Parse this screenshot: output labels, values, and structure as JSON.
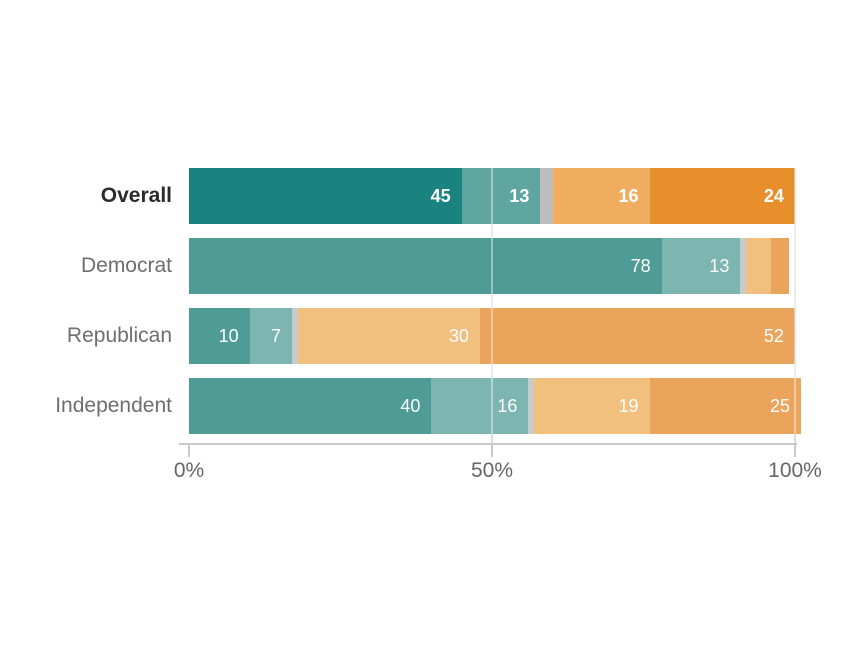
{
  "chart_data": {
    "type": "bar",
    "orientation": "horizontal-stacked",
    "title": "",
    "xlabel": "",
    "ylabel": "",
    "xlim": [
      0,
      100
    ],
    "grid": "vertical gridlines at 50 and 100, white over bars",
    "legend": "none",
    "categories": [
      "Overall",
      "Democrat",
      "Republican",
      "Independent"
    ],
    "series": [
      {
        "name": "teal-strong",
        "values": [
          45,
          78,
          10,
          40
        ]
      },
      {
        "name": "teal-light",
        "values": [
          13,
          13,
          7,
          16
        ]
      },
      {
        "name": "gray-neutral-unlabeled",
        "values": [
          2,
          1,
          1,
          1
        ]
      },
      {
        "name": "orange-light",
        "values": [
          16,
          4,
          30,
          19
        ]
      },
      {
        "name": "orange-strong",
        "values": [
          24,
          3,
          52,
          25
        ]
      }
    ],
    "rows": [
      {
        "label": "Overall",
        "emphasis": true,
        "segments": [
          {
            "value": 45,
            "text": "45"
          },
          {
            "value": 13,
            "text": "13"
          },
          {
            "value": 2,
            "text": ""
          },
          {
            "value": 16,
            "text": "16"
          },
          {
            "value": 24,
            "text": "24"
          }
        ]
      },
      {
        "label": "Democrat",
        "emphasis": false,
        "segments": [
          {
            "value": 78,
            "text": "78"
          },
          {
            "value": 13,
            "text": "13"
          },
          {
            "value": 1,
            "text": ""
          },
          {
            "value": 4,
            "text": ""
          },
          {
            "value": 3,
            "text": ""
          }
        ]
      },
      {
        "label": "Republican",
        "emphasis": false,
        "segments": [
          {
            "value": 10,
            "text": "10"
          },
          {
            "value": 7,
            "text": "7"
          },
          {
            "value": 1,
            "text": ""
          },
          {
            "value": 30,
            "text": "30"
          },
          {
            "value": 52,
            "text": "52"
          }
        ]
      },
      {
        "label": "Independent",
        "emphasis": false,
        "segments": [
          {
            "value": 40,
            "text": "40"
          },
          {
            "value": 16,
            "text": "16"
          },
          {
            "value": 1,
            "text": ""
          },
          {
            "value": 19,
            "text": "19"
          },
          {
            "value": 25,
            "text": "25"
          }
        ]
      }
    ],
    "x_ticks": [
      {
        "label": "0%",
        "pos": 0
      },
      {
        "label": "50%",
        "pos": 50
      },
      {
        "label": "100%",
        "pos": 100
      }
    ],
    "gridlines_pos": [
      50,
      100
    ],
    "colors": {
      "emphasis": [
        "#1a827f",
        "#60a6a0",
        "#bdbfbf",
        "#f0ac5f",
        "#e78f2c"
      ],
      "normal": [
        "#4f9c96",
        "#7db5b0",
        "#c8cbca",
        "#f2c07e",
        "#eba45b"
      ],
      "axis_line": "#c9c9c9",
      "tick_label": "#666666",
      "value_label": "#ffffff"
    }
  }
}
